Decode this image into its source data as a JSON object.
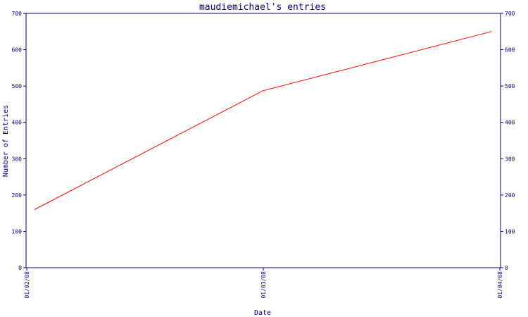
{
  "chart_data": {
    "type": "line",
    "title": "maudiemichael's entries",
    "xlabel": "Date",
    "ylabel": "Number of Entries",
    "x_ticks": [
      "01/02/08",
      "01/03/08",
      "01/04/08"
    ],
    "ylim": [
      0,
      700
    ],
    "y_ticks": [
      0,
      100,
      200,
      300,
      400,
      500,
      600,
      700
    ],
    "grid": false,
    "series": [
      {
        "color": "#ff0000",
        "points": [
          {
            "x": "2008-01-02",
            "y": 160
          },
          {
            "x": "2008-01-03",
            "y": 487
          },
          {
            "x": "2008-01-04",
            "y": 650
          }
        ]
      }
    ],
    "colors": {
      "axis": "#000080",
      "line": "#ff0000",
      "background": "#ffffff"
    }
  }
}
